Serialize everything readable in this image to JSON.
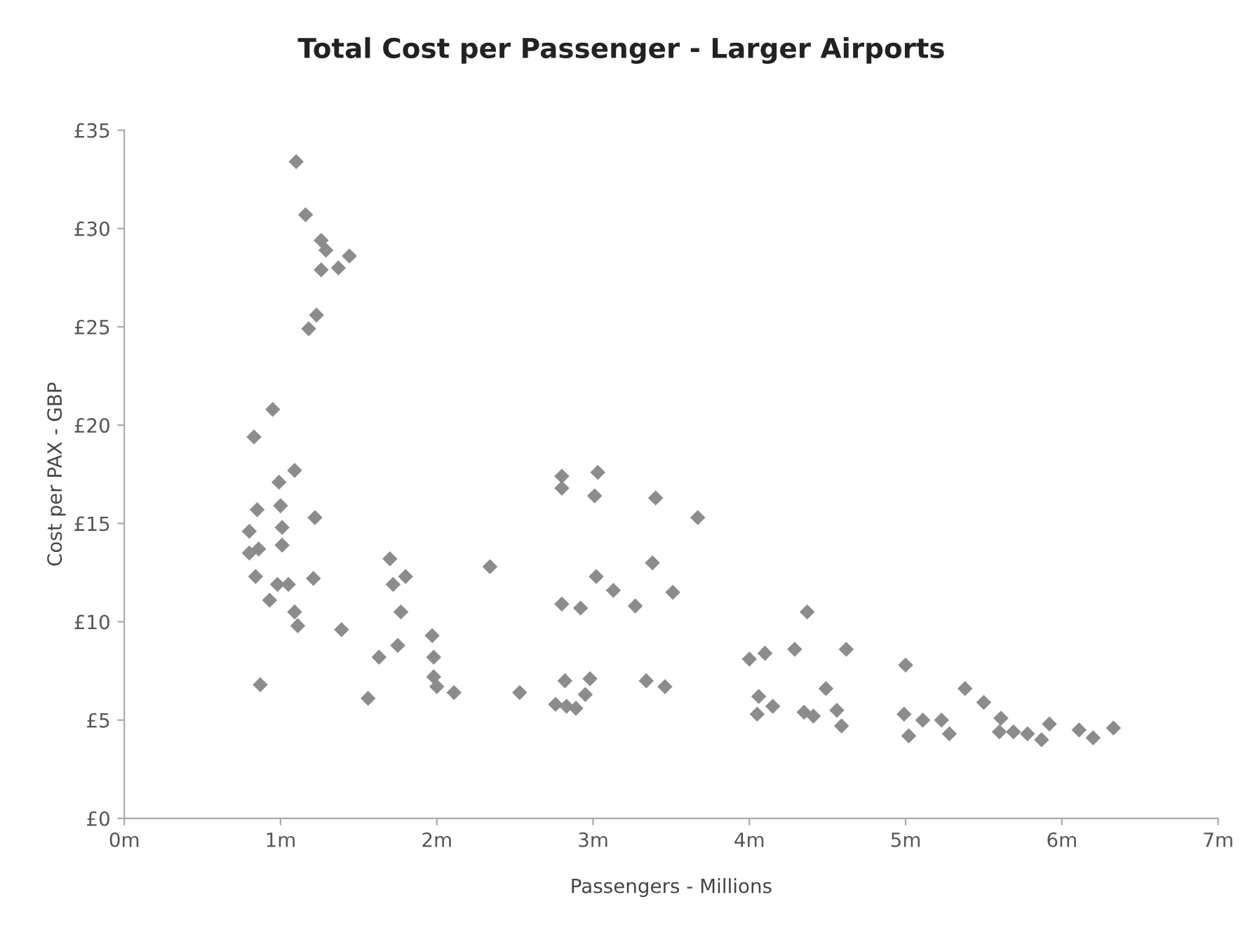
{
  "chart_data": {
    "type": "scatter",
    "title": "Total Cost per Passenger - Larger Airports",
    "xlabel": "Passengers - Millions",
    "ylabel": "Cost per PAX - GBP",
    "marker": "diamond",
    "grid": false,
    "xlim": [
      0,
      7
    ],
    "ylim": [
      0,
      35
    ],
    "xticks": [
      {
        "value": 0,
        "label": "0m"
      },
      {
        "value": 1,
        "label": "1m"
      },
      {
        "value": 2,
        "label": "2m"
      },
      {
        "value": 3,
        "label": "3m"
      },
      {
        "value": 4,
        "label": "4m"
      },
      {
        "value": 5,
        "label": "5m"
      },
      {
        "value": 6,
        "label": "6m"
      },
      {
        "value": 7,
        "label": "7m"
      }
    ],
    "yticks": [
      {
        "value": 0,
        "label": "£0"
      },
      {
        "value": 5,
        "label": "£5"
      },
      {
        "value": 10,
        "label": "£10"
      },
      {
        "value": 15,
        "label": "£15"
      },
      {
        "value": 20,
        "label": "£20"
      },
      {
        "value": 25,
        "label": "£25"
      },
      {
        "value": 30,
        "label": "£30"
      },
      {
        "value": 35,
        "label": "£35"
      }
    ],
    "series": [
      {
        "color": "#8c8c8c",
        "x": [
          1.1,
          1.16,
          1.26,
          1.29,
          1.26,
          1.37,
          1.44,
          1.23,
          1.18,
          0.95,
          0.83,
          0.99,
          1.09,
          2.8,
          3.03,
          0.85,
          1.0,
          1.22,
          0.8,
          1.01,
          0.8,
          0.86,
          1.01,
          0.84,
          0.98,
          1.05,
          1.21,
          0.93,
          1.09,
          1.11,
          1.39,
          0.87,
          1.7,
          1.72,
          1.8,
          1.77,
          1.75,
          1.63,
          1.97,
          1.98,
          1.98,
          2.0,
          2.11,
          1.56,
          2.34,
          2.53,
          2.8,
          3.01,
          3.02,
          3.13,
          2.8,
          2.92,
          2.82,
          2.98,
          2.95,
          2.76,
          2.83,
          2.89,
          3.4,
          3.67,
          3.38,
          3.51,
          3.27,
          4.37,
          4.0,
          4.1,
          4.29,
          4.62,
          3.34,
          3.46,
          4.49,
          5.0,
          4.06,
          4.15,
          4.05,
          4.35,
          4.41,
          4.56,
          4.59,
          5.38,
          5.5,
          5.61,
          5.92,
          4.99,
          5.11,
          5.23,
          5.28,
          5.02,
          5.6,
          5.69,
          5.78,
          5.87,
          6.11,
          6.2,
          6.33
        ],
        "values": [
          33.4,
          30.7,
          29.4,
          28.9,
          27.9,
          28.0,
          28.6,
          25.6,
          24.9,
          20.8,
          19.4,
          17.1,
          17.7,
          17.4,
          17.6,
          15.7,
          15.9,
          15.3,
          14.6,
          14.8,
          13.5,
          13.7,
          13.9,
          12.3,
          11.9,
          11.9,
          12.2,
          11.1,
          10.5,
          9.8,
          9.6,
          6.8,
          13.2,
          11.9,
          12.3,
          10.5,
          8.8,
          8.2,
          9.3,
          8.2,
          7.2,
          6.7,
          6.4,
          6.1,
          12.8,
          6.4,
          16.8,
          16.4,
          12.3,
          11.6,
          10.9,
          10.7,
          7.0,
          7.1,
          6.3,
          5.8,
          5.7,
          5.6,
          16.3,
          15.3,
          13.0,
          11.5,
          10.8,
          10.5,
          8.1,
          8.4,
          8.6,
          8.6,
          7.0,
          6.7,
          6.6,
          7.8,
          6.2,
          5.7,
          5.3,
          5.4,
          5.2,
          5.5,
          4.7,
          6.6,
          5.9,
          5.1,
          4.8,
          5.3,
          5.0,
          5.0,
          4.3,
          4.2,
          4.4,
          4.4,
          4.3,
          4.0,
          4.5,
          4.1,
          4.6
        ]
      }
    ]
  }
}
